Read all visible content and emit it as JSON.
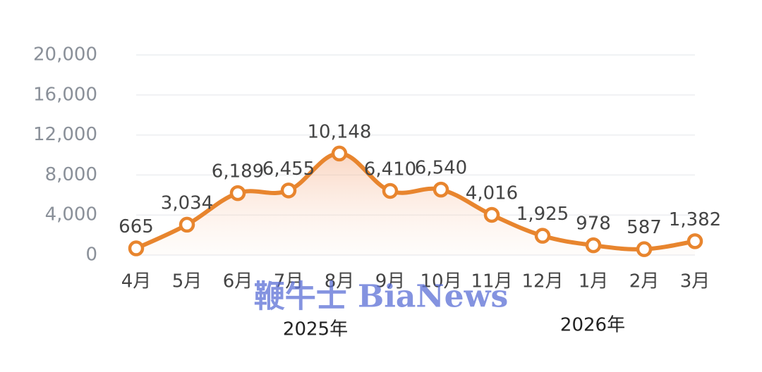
{
  "chart_data": {
    "type": "line",
    "categories": [
      "4月",
      "5月",
      "6月",
      "7月",
      "8月",
      "9月",
      "10月",
      "11月",
      "12月",
      "1月",
      "2月",
      "3月"
    ],
    "values": [
      665,
      3034,
      6189,
      6455,
      10148,
      6410,
      6540,
      4016,
      1925,
      978,
      587,
      1382
    ],
    "value_labels": [
      "665",
      "3,034",
      "6,189",
      "6,455",
      "10,148",
      "6,410",
      "6,540",
      "4,016",
      "1,925",
      "978",
      "587",
      "1,382"
    ],
    "color": "#e8852e",
    "ylim": [
      0,
      20000
    ],
    "yticks": [
      0,
      {
        "value": 4000,
        "label": "4,000"
      },
      {
        "value": 8000,
        "label": "8,000"
      },
      {
        "value": 12000,
        "label": "12,000"
      },
      {
        "value": 16000,
        "label": "16,000"
      },
      {
        "value": 20000,
        "label": "20,000"
      }
    ],
    "grid": true,
    "year_labels": [
      "2025年",
      "2026年"
    ],
    "watermark": "鞭牛士 BiaNews"
  }
}
